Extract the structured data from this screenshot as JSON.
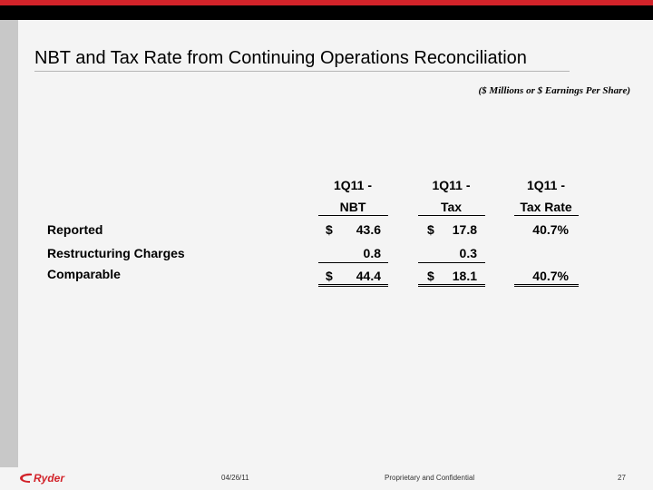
{
  "slide": {
    "title": "NBT and Tax Rate from Continuing Operations Reconciliation",
    "units": "($ Millions or $ Earnings Per Share)"
  },
  "table": {
    "columns": [
      {
        "line1": "1Q11 -",
        "line2": "NBT"
      },
      {
        "line1": "1Q11 -",
        "line2": "Tax"
      },
      {
        "line1": "1Q11 -",
        "line2": "Tax Rate"
      }
    ],
    "rows": [
      {
        "label": "Reported",
        "cells": [
          {
            "currency": "$",
            "value": "43.6"
          },
          {
            "currency": "$",
            "value": "17.8"
          },
          {
            "currency": "",
            "value": "40.7%"
          }
        ]
      },
      {
        "label": "Restructuring Charges",
        "cells": [
          {
            "currency": "",
            "value": "0.8"
          },
          {
            "currency": "",
            "value": "0.3"
          },
          {
            "currency": "",
            "value": ""
          }
        ]
      },
      {
        "label": "Comparable",
        "cells": [
          {
            "currency": "$",
            "value": "44.4"
          },
          {
            "currency": "$",
            "value": "18.1"
          },
          {
            "currency": "",
            "value": "40.7%"
          }
        ]
      }
    ]
  },
  "footer": {
    "logo_text": "Ryder",
    "date": "04/26/11",
    "confidentiality": "Proprietary and Confidential",
    "page_number": "27"
  },
  "colors": {
    "brand_red": "#d2232a",
    "header_black": "#000000",
    "background": "#f4f4f4"
  }
}
